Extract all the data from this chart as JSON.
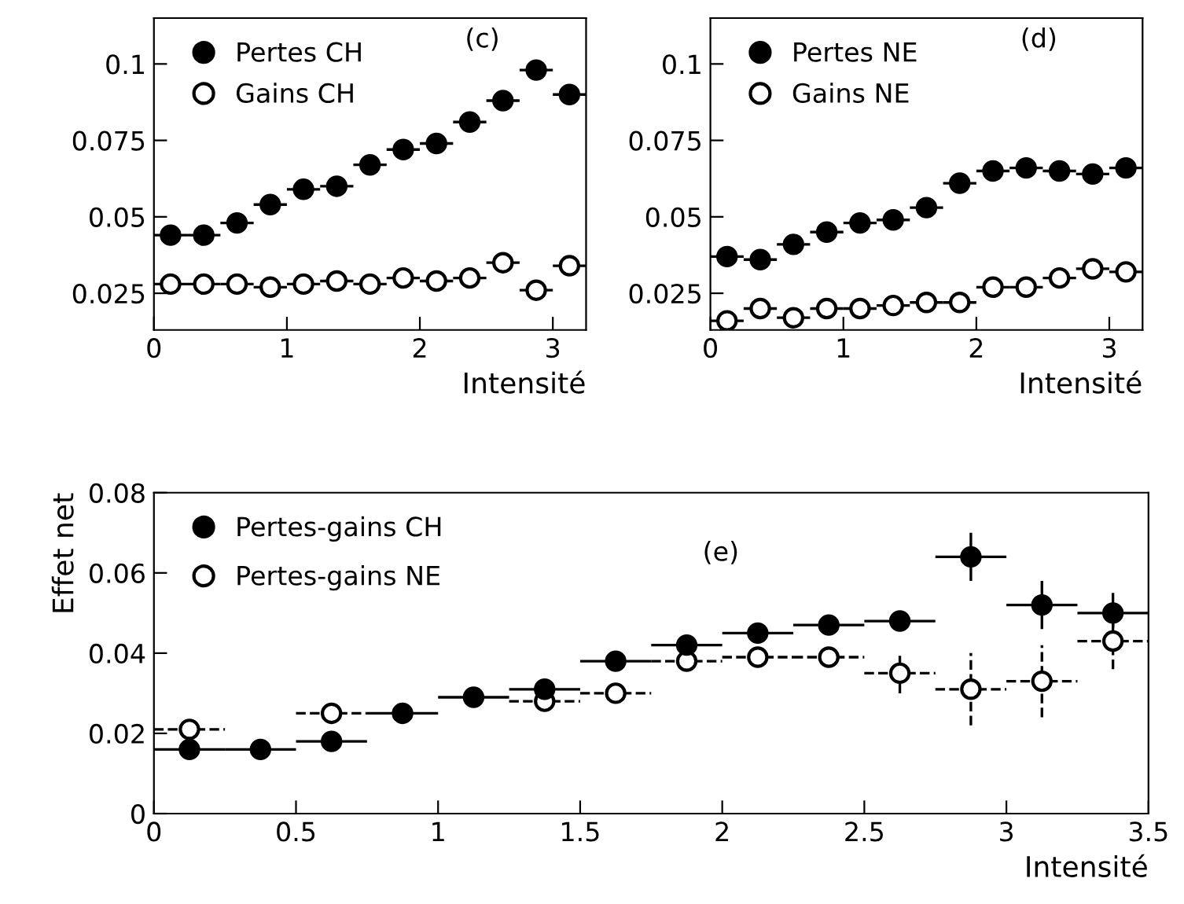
{
  "chart_data": [
    {
      "type": "scatter",
      "annotations": [
        "(c)"
      ],
      "xlabel": "Intensité",
      "xlim": [
        0,
        3.25
      ],
      "xticks": [
        0,
        1,
        2,
        3
      ],
      "ylim": [
        0.013,
        0.115
      ],
      "yticks": [
        0.025,
        0.05,
        0.075,
        0.1
      ],
      "legend": "top left",
      "marker": "circle",
      "x": [
        0.125,
        0.375,
        0.625,
        0.875,
        1.125,
        1.375,
        1.625,
        1.875,
        2.125,
        2.375,
        2.625,
        2.875,
        3.125
      ],
      "series": [
        {
          "name": "Pertes CH",
          "color": "#000000",
          "values": [
            0.044,
            0.044,
            0.048,
            0.054,
            0.059,
            0.06,
            0.067,
            0.072,
            0.074,
            0.081,
            0.088,
            0.098,
            0.09
          ],
          "xerrors": [
            0.125,
            0.125,
            0.125,
            0.125,
            0.125,
            0.125,
            0.125,
            0.125,
            0.125,
            0.125,
            0.125,
            0.125,
            0.125
          ]
        },
        {
          "name": "Gains CH",
          "color": "#000000",
          "values": [
            0.028,
            0.028,
            0.028,
            0.027,
            0.028,
            0.029,
            0.028,
            0.03,
            0.029,
            0.03,
            0.035,
            0.026,
            0.034
          ],
          "xerrors": [
            0.125,
            0.125,
            0.125,
            0.125,
            0.125,
            0.125,
            0.125,
            0.125,
            0.125,
            0.125,
            0.125,
            0.125,
            0.125
          ]
        }
      ]
    },
    {
      "type": "scatter",
      "annotations": [
        "(d)"
      ],
      "xlabel": "Intensité",
      "xlim": [
        0,
        3.25
      ],
      "xticks": [
        0,
        1,
        2,
        3
      ],
      "ylim": [
        0.013,
        0.115
      ],
      "yticks": [
        0.025,
        0.05,
        0.075,
        0.1
      ],
      "legend": "top left",
      "marker": "circle",
      "x": [
        0.125,
        0.375,
        0.625,
        0.875,
        1.125,
        1.375,
        1.625,
        1.875,
        2.125,
        2.375,
        2.625,
        2.875,
        3.125
      ],
      "series": [
        {
          "name": "Pertes NE",
          "color": "#000000",
          "values": [
            0.037,
            0.036,
            0.041,
            0.045,
            0.048,
            0.049,
            0.053,
            0.061,
            0.065,
            0.066,
            0.065,
            0.064,
            0.066
          ],
          "xerrors": [
            0.125,
            0.125,
            0.125,
            0.125,
            0.125,
            0.125,
            0.125,
            0.125,
            0.125,
            0.125,
            0.125,
            0.125,
            0.125
          ]
        },
        {
          "name": "Gains NE",
          "color": "#000000",
          "values": [
            0.016,
            0.02,
            0.017,
            0.02,
            0.02,
            0.021,
            0.022,
            0.022,
            0.027,
            0.027,
            0.03,
            0.033,
            0.032
          ],
          "xerrors": [
            0.125,
            0.125,
            0.125,
            0.125,
            0.125,
            0.125,
            0.125,
            0.125,
            0.125,
            0.125,
            0.125,
            0.125,
            0.125
          ]
        }
      ]
    },
    {
      "type": "scatter",
      "annotations": [
        "(e)"
      ],
      "xlabel": "Intensité",
      "ylabel": "Effet net",
      "xlim": [
        0,
        3.5
      ],
      "xticks": [
        0,
        0.5,
        1,
        1.5,
        2,
        2.5,
        3,
        3.5
      ],
      "ylim": [
        0,
        0.08
      ],
      "yticks": [
        0,
        0.02,
        0.04,
        0.06,
        0.08
      ],
      "legend": "top left",
      "marker": "circle",
      "x": [
        0.125,
        0.375,
        0.625,
        0.875,
        1.125,
        1.375,
        1.625,
        1.875,
        2.125,
        2.375,
        2.625,
        2.875,
        3.125,
        3.375
      ],
      "series": [
        {
          "name": "Pertes-gains CH",
          "color": "#000000",
          "line_style": "solid",
          "values": [
            0.016,
            0.016,
            0.018,
            0.025,
            0.029,
            0.031,
            0.038,
            0.042,
            0.045,
            0.047,
            0.048,
            0.064,
            0.052,
            0.05
          ],
          "errors": [
            null,
            null,
            null,
            null,
            null,
            null,
            null,
            null,
            null,
            null,
            0.002,
            0.006,
            0.006,
            0.005
          ],
          "xerrors": [
            0.125,
            0.125,
            0.125,
            0.125,
            0.125,
            0.125,
            0.125,
            0.125,
            0.125,
            0.125,
            0.125,
            0.125,
            0.125,
            0.125
          ]
        },
        {
          "name": "Pertes-gains NE",
          "color": "#000000",
          "line_style": "dashed",
          "values": [
            0.021,
            null,
            0.025,
            null,
            null,
            0.028,
            0.03,
            0.038,
            0.039,
            0.039,
            0.035,
            0.031,
            0.033,
            0.043
          ],
          "errors": [
            null,
            null,
            null,
            null,
            null,
            null,
            null,
            null,
            null,
            null,
            0.005,
            0.009,
            0.009,
            0.007
          ],
          "xerrors": [
            0.125,
            null,
            0.125,
            null,
            null,
            0.125,
            0.125,
            0.125,
            0.125,
            0.125,
            0.125,
            0.125,
            0.125,
            0.125
          ]
        }
      ]
    }
  ]
}
